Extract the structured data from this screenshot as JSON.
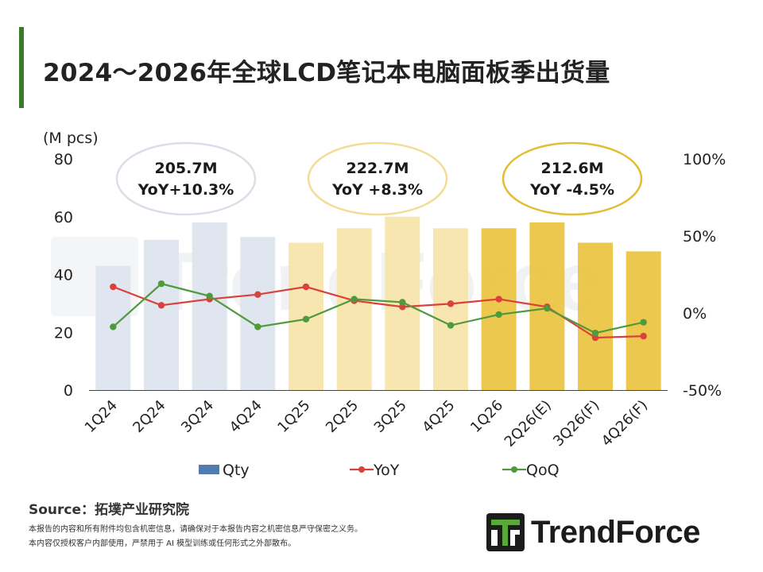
{
  "title": "2024～2026年全球LCD笔记本电脑面板季出货量",
  "source": "Source：拓墣产业研究院",
  "notes": [
    "本报告的内容和所有附件均包含机密信息，请确保对于本报告内容之机密信息严守保密之义务。",
    "本内容仅授权客户内部使用，严禁用于 AI 模型训练或任何形式之外部散布。"
  ],
  "brand": {
    "name": "TrendForce",
    "logo_icon": "trendforce-logo-icon",
    "watermark": "TrendForce"
  },
  "colors": {
    "bar_2024": "#dde4ee",
    "bar_2025": "#f7e4a9",
    "bar_2026": "#ebc33f",
    "legend_qty": "#4f7db0",
    "yoy": "#d9413a",
    "qoq": "#4f9a3d",
    "title_accent": "#3b7a2a"
  },
  "chart_data": {
    "type": "bar",
    "categories": [
      "1Q24",
      "2Q24",
      "3Q24",
      "4Q24",
      "1Q25",
      "2Q25",
      "3Q25",
      "4Q25",
      "1Q26",
      "2Q26(E)",
      "3Q26(F)",
      "4Q26(F)"
    ],
    "y_unit_label": "(M pcs)",
    "ylim": [
      0,
      80
    ],
    "y_ticks": [
      "0",
      "20",
      "40",
      "60",
      "80"
    ],
    "y2lim": [
      -50,
      100
    ],
    "y2_ticks": [
      "-50%",
      "0%",
      "50%",
      "100%"
    ],
    "series": [
      {
        "name": "Qty",
        "type": "bar",
        "axis": "left",
        "values": [
          43,
          52,
          58,
          53,
          51,
          56,
          60,
          56,
          56,
          58,
          51,
          48
        ]
      },
      {
        "name": "YoY",
        "type": "line",
        "axis": "right",
        "values": [
          17,
          5,
          9,
          12,
          17,
          8,
          4,
          6,
          9,
          4,
          -16,
          -15
        ]
      },
      {
        "name": "QoQ",
        "type": "line",
        "axis": "right",
        "values": [
          -9,
          19,
          11,
          -9,
          -4,
          9,
          7,
          -8,
          -1,
          3,
          -13,
          -6
        ]
      }
    ],
    "annotations": [
      {
        "line1": "205.7M",
        "line2": "YoY+10.3%",
        "border": "#d9dfe8"
      },
      {
        "line1": "222.7M",
        "line2": "YoY +8.3%",
        "border": "#f2dc96"
      },
      {
        "line1": "212.6M",
        "line2": "YoY -4.5%",
        "border": "#e3bd35"
      }
    ],
    "legend": [
      "Qty",
      "YoY",
      "QoQ"
    ],
    "legend_position": "bottom",
    "grid": false
  }
}
